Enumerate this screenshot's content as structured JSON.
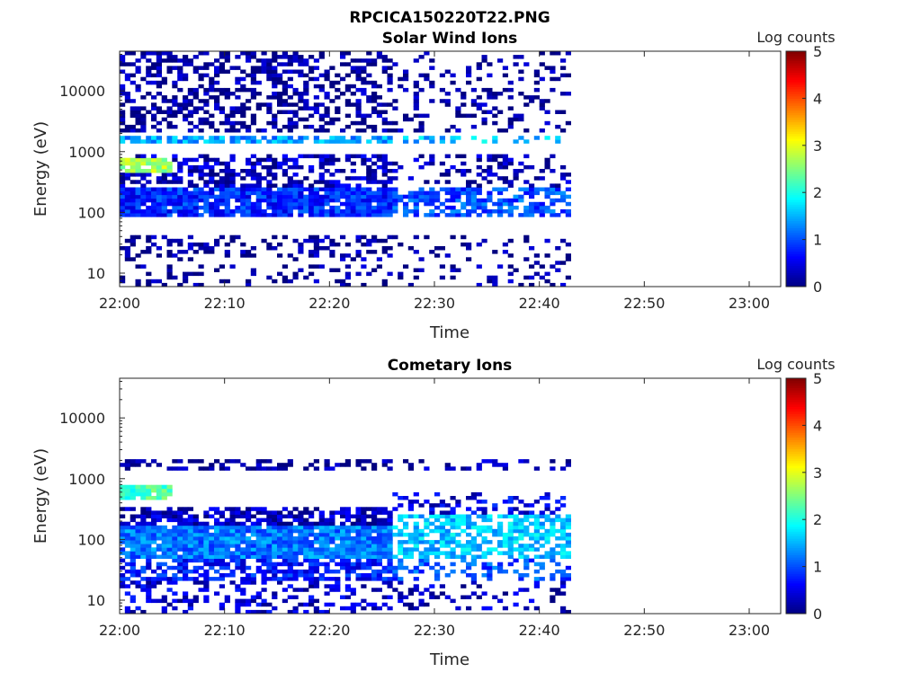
{
  "figure_title": "RPCICA150220T22.PNG",
  "chart_data": [
    {
      "type": "heatmap",
      "title": "Solar Wind Ions",
      "xlabel": "Time",
      "ylabel": "Energy (eV)",
      "x_ticks": [
        "22:00",
        "22:10",
        "22:20",
        "22:30",
        "22:40",
        "22:50",
        "23:00"
      ],
      "x_range": [
        "22:00",
        "23:03"
      ],
      "y_scale": "log",
      "y_ticks": [
        "10",
        "100",
        "1000",
        "10000"
      ],
      "ylim": [
        6,
        45000
      ],
      "data_time_range": [
        "22:00",
        "22:43"
      ],
      "colorbar": {
        "label": "Log counts",
        "ticks": [
          "0",
          "1",
          "2",
          "3",
          "4",
          "5"
        ],
        "range": [
          0,
          5
        ],
        "colormap": "jet"
      },
      "bands": [
        {
          "t_start": "22:00",
          "t_end": "22:26",
          "energy_min": 90,
          "energy_max": 250,
          "level": 0.8,
          "density": 0.9
        },
        {
          "t_start": "22:00",
          "t_end": "22:26",
          "energy_min": 250,
          "energy_max": 900,
          "level": 0.3,
          "density": 0.55
        },
        {
          "t_start": "22:00",
          "t_end": "22:26",
          "energy_min": 1300,
          "energy_max": 1800,
          "level": 1.4,
          "density": 0.75
        },
        {
          "t_start": "22:00",
          "t_end": "22:26",
          "energy_min": 2000,
          "energy_max": 42000,
          "level": 0.1,
          "density": 0.45
        },
        {
          "t_start": "22:00",
          "t_end": "22:26",
          "energy_min": 15,
          "energy_max": 40,
          "level": 0.1,
          "density": 0.35
        },
        {
          "t_start": "22:00",
          "t_end": "22:26",
          "energy_min": 6,
          "energy_max": 14,
          "level": 0.1,
          "density": 0.2
        },
        {
          "t_start": "22:00",
          "t_end": "22:05",
          "energy_min": 450,
          "energy_max": 800,
          "level": 2.7,
          "density": 0.9
        },
        {
          "t_start": "22:26",
          "t_end": "22:43",
          "energy_min": 90,
          "energy_max": 250,
          "level": 1.0,
          "density": 0.6
        },
        {
          "t_start": "22:26",
          "t_end": "22:43",
          "energy_min": 250,
          "energy_max": 900,
          "level": 0.2,
          "density": 0.25
        },
        {
          "t_start": "22:26",
          "t_end": "22:43",
          "energy_min": 1300,
          "energy_max": 1800,
          "level": 1.6,
          "density": 0.35
        },
        {
          "t_start": "22:26",
          "t_end": "22:43",
          "energy_min": 2000,
          "energy_max": 42000,
          "level": 0.1,
          "density": 0.2
        },
        {
          "t_start": "22:26",
          "t_end": "22:43",
          "energy_min": 6,
          "energy_max": 40,
          "level": 0.1,
          "density": 0.15
        }
      ]
    },
    {
      "type": "heatmap",
      "title": "Cometary Ions",
      "xlabel": "Time",
      "ylabel": "Energy (eV)",
      "x_ticks": [
        "22:00",
        "22:10",
        "22:20",
        "22:30",
        "22:40",
        "22:50",
        "23:00"
      ],
      "x_range": [
        "22:00",
        "23:03"
      ],
      "y_scale": "log",
      "y_ticks": [
        "10",
        "100",
        "1000",
        "10000"
      ],
      "ylim": [
        6,
        45000
      ],
      "data_time_range": [
        "22:00",
        "22:43"
      ],
      "colorbar": {
        "label": "Log counts",
        "ticks": [
          "0",
          "1",
          "2",
          "3",
          "4",
          "5"
        ],
        "range": [
          0,
          5
        ],
        "colormap": "jet"
      },
      "bands": [
        {
          "t_start": "22:00",
          "t_end": "22:26",
          "energy_min": 50,
          "energy_max": 180,
          "level": 1.2,
          "density": 0.95
        },
        {
          "t_start": "22:00",
          "t_end": "22:26",
          "energy_min": 180,
          "energy_max": 350,
          "level": 0.3,
          "density": 0.7
        },
        {
          "t_start": "22:00",
          "t_end": "22:26",
          "energy_min": 20,
          "energy_max": 50,
          "level": 0.7,
          "density": 0.6
        },
        {
          "t_start": "22:00",
          "t_end": "22:26",
          "energy_min": 6,
          "energy_max": 20,
          "level": 0.4,
          "density": 0.35
        },
        {
          "t_start": "22:00",
          "t_end": "22:26",
          "energy_min": 1300,
          "energy_max": 2200,
          "level": 0.1,
          "density": 0.45
        },
        {
          "t_start": "22:00",
          "t_end": "22:05",
          "energy_min": 450,
          "energy_max": 800,
          "level": 2.2,
          "density": 0.9
        },
        {
          "t_start": "22:26",
          "t_end": "22:43",
          "energy_min": 50,
          "energy_max": 250,
          "level": 1.6,
          "density": 0.65
        },
        {
          "t_start": "22:26",
          "t_end": "22:43",
          "energy_min": 250,
          "energy_max": 600,
          "level": 0.5,
          "density": 0.3
        },
        {
          "t_start": "22:26",
          "t_end": "22:43",
          "energy_min": 20,
          "energy_max": 50,
          "level": 1.0,
          "density": 0.35
        },
        {
          "t_start": "22:26",
          "t_end": "22:43",
          "energy_min": 6,
          "energy_max": 20,
          "level": 0.3,
          "density": 0.2
        },
        {
          "t_start": "22:26",
          "t_end": "22:43",
          "energy_min": 1300,
          "energy_max": 2200,
          "level": 0.2,
          "density": 0.25
        }
      ]
    }
  ]
}
